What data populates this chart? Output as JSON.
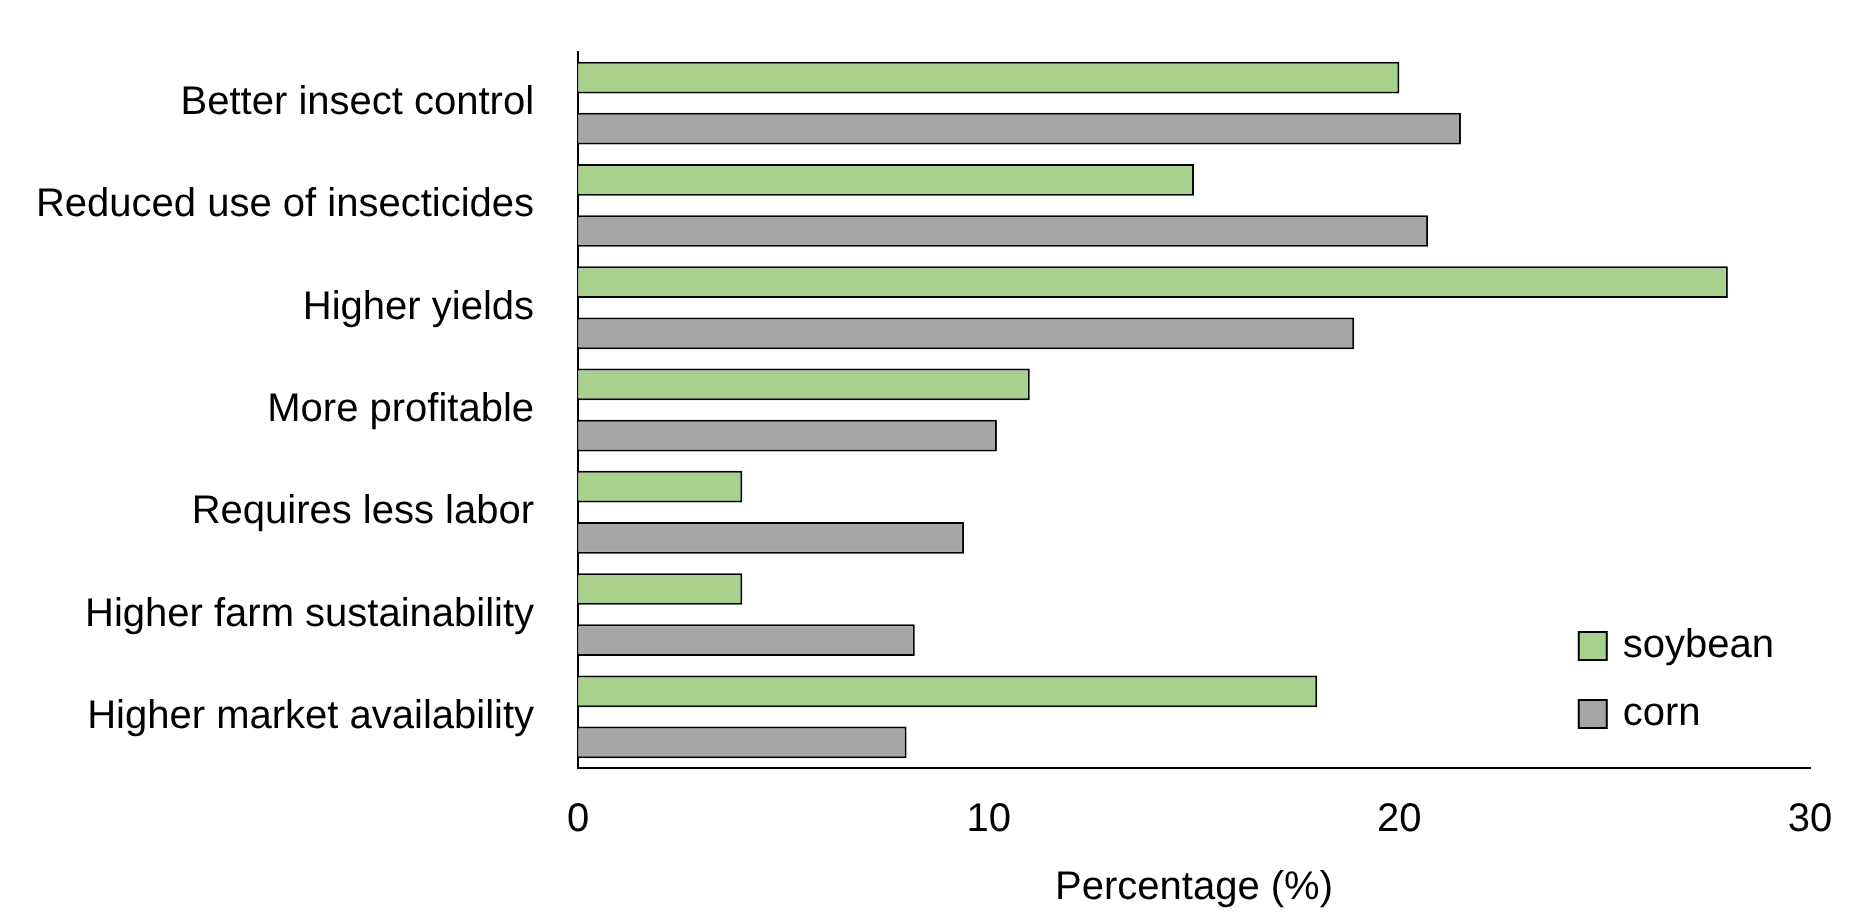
{
  "chart_data": {
    "type": "bar",
    "orientation": "horizontal",
    "xlabel": "Percentage (%)",
    "categories": [
      "Better insect control",
      "Reduced use of insecticides",
      "Higher yields",
      "More profitable",
      "Requires less labor",
      "Higher farm sustainability",
      "Higher market availability"
    ],
    "series": [
      {
        "name": "soybean",
        "color": "#a9d18e",
        "values": [
          20,
          15,
          28,
          11,
          4,
          4,
          18
        ]
      },
      {
        "name": "corn",
        "color": "#a6a6a6",
        "values": [
          21.5,
          20.7,
          18.9,
          10.2,
          9.4,
          8.2,
          8.0
        ]
      }
    ],
    "xlim": [
      0,
      30
    ],
    "xticks": [
      0,
      10,
      20,
      30
    ],
    "grid": false,
    "legend": "bottom right"
  }
}
